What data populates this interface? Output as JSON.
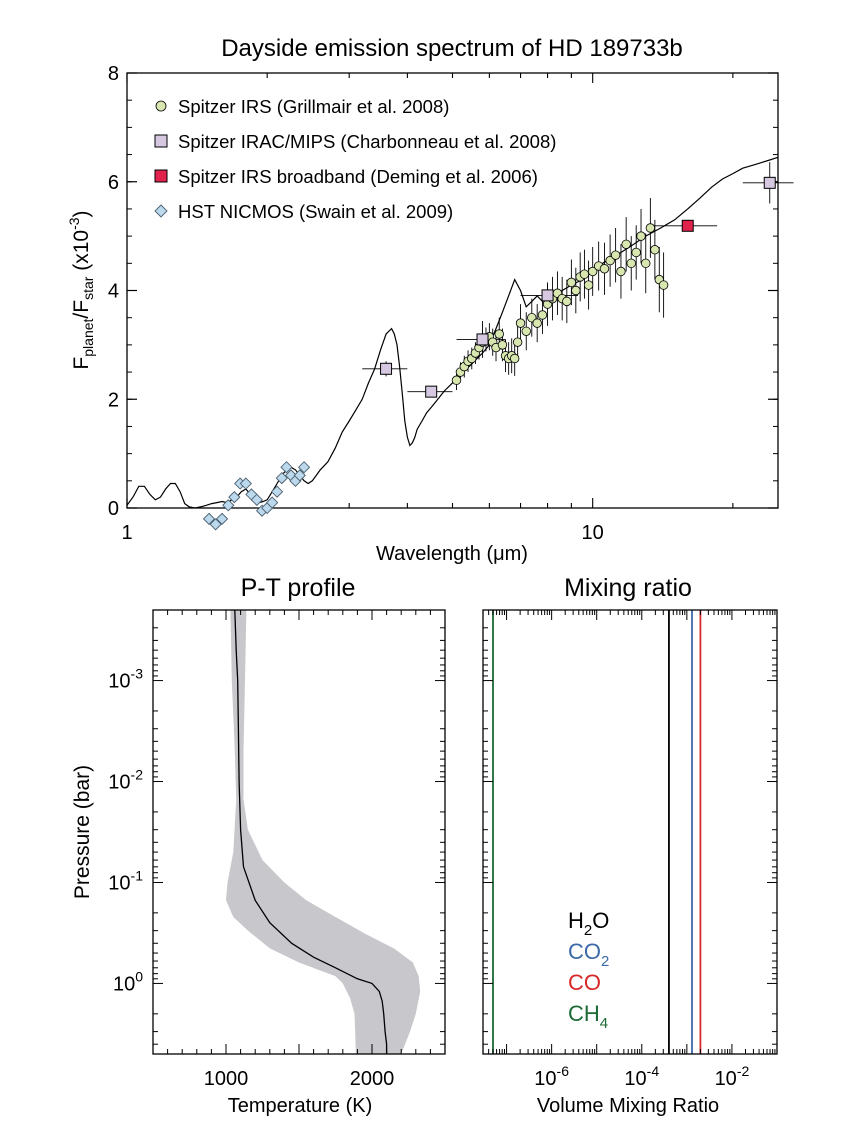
{
  "chart_data": [
    {
      "type": "scatter",
      "title": "Dayside emission spectrum of HD 189733b",
      "xlabel": "Wavelength (μm)",
      "ylabel_parts": {
        "f1": "F",
        "s1": "planet",
        "slash": "/F",
        "s2": "star",
        "unit_pre": " (x10",
        "unit_sup": "-3",
        "unit_post": ")"
      },
      "xscale": "log",
      "xlim": [
        1,
        25
      ],
      "ylim": [
        0,
        8
      ],
      "x_ticks": [
        {
          "value": 1,
          "label": "1"
        },
        {
          "value": 10,
          "label": "10"
        }
      ],
      "y_ticks": [
        {
          "value": 0,
          "label": "0"
        },
        {
          "value": 2,
          "label": "2"
        },
        {
          "value": 4,
          "label": "4"
        },
        {
          "value": 6,
          "label": "6"
        },
        {
          "value": 8,
          "label": "8"
        }
      ],
      "legend_position": "top-left",
      "legend": [
        {
          "name": "Spitzer IRS (Grillmair et al. 2008)",
          "marker": "circle",
          "color": "#d8e6b0"
        },
        {
          "name": "Spitzer IRAC/MIPS (Charbonneau et al. 2008)",
          "marker": "square",
          "color": "#d6c8e0"
        },
        {
          "name": "Spitzer IRS broadband (Deming et al. 2006)",
          "marker": "square",
          "color": "#e0224c"
        },
        {
          "name": "HST NICMOS (Swain et al. 2009)",
          "marker": "diamond",
          "color": "#bcd8ec"
        }
      ],
      "model_spectrum": {
        "x": [
          1.0,
          1.03,
          1.06,
          1.09,
          1.12,
          1.15,
          1.18,
          1.21,
          1.24,
          1.27,
          1.3,
          1.33,
          1.36,
          1.4,
          1.44,
          1.48,
          1.52,
          1.56,
          1.6,
          1.64,
          1.68,
          1.72,
          1.76,
          1.8,
          1.84,
          1.88,
          1.92,
          1.96,
          2.0,
          2.05,
          2.1,
          2.15,
          2.2,
          2.25,
          2.3,
          2.35,
          2.4,
          2.45,
          2.5,
          2.55,
          2.6,
          2.7,
          2.8,
          2.9,
          3.0,
          3.1,
          3.2,
          3.3,
          3.4,
          3.5,
          3.6,
          3.7,
          3.75,
          3.8,
          3.85,
          3.9,
          3.95,
          4.0,
          4.05,
          4.1,
          4.15,
          4.2,
          4.3,
          4.4,
          4.5,
          4.6,
          4.8,
          5.0,
          5.2,
          5.5,
          5.8,
          6.0,
          6.2,
          6.4,
          6.6,
          6.8,
          7.0,
          7.2,
          7.4,
          7.6,
          7.8,
          8.0,
          8.3,
          8.6,
          9.0,
          9.5,
          10.0,
          10.5,
          11.0,
          11.5,
          12.0,
          13.0,
          14.0,
          15.0,
          16.0,
          17.0,
          18.0,
          19.0,
          20.0,
          21.0,
          22.0,
          23.0,
          24.0,
          25.0
        ],
        "y": [
          0.05,
          0.2,
          0.4,
          0.4,
          0.25,
          0.15,
          0.2,
          0.35,
          0.45,
          0.45,
          0.3,
          0.08,
          0.02,
          0.0,
          0.02,
          0.05,
          0.08,
          0.1,
          0.12,
          0.1,
          0.15,
          0.2,
          0.3,
          0.35,
          0.25,
          0.15,
          0.1,
          0.12,
          0.15,
          0.3,
          0.45,
          0.6,
          0.7,
          0.75,
          0.7,
          0.6,
          0.5,
          0.45,
          0.5,
          0.6,
          0.7,
          0.85,
          1.1,
          1.4,
          1.6,
          1.8,
          2.0,
          2.3,
          2.55,
          2.9,
          3.2,
          3.3,
          3.2,
          3.0,
          2.6,
          2.1,
          1.6,
          1.3,
          1.15,
          1.2,
          1.3,
          1.45,
          1.6,
          1.75,
          1.85,
          1.95,
          2.15,
          2.3,
          2.45,
          2.65,
          2.85,
          3.0,
          3.3,
          3.6,
          3.9,
          4.2,
          4.0,
          3.7,
          3.8,
          3.9,
          3.8,
          3.85,
          3.9,
          4.0,
          4.1,
          4.2,
          4.35,
          4.5,
          4.6,
          4.7,
          4.8,
          5.0,
          5.15,
          5.3,
          5.5,
          5.7,
          5.9,
          6.05,
          6.15,
          6.25,
          6.3,
          6.35,
          6.4,
          6.45
        ]
      },
      "series": [
        {
          "name": "Spitzer IRS (Grillmair et al. 2008)",
          "marker": "circle",
          "color": "#d8e6b0",
          "x": [
            5.1,
            5.2,
            5.3,
            5.4,
            5.5,
            5.6,
            5.7,
            5.8,
            5.9,
            6.0,
            6.1,
            6.2,
            6.3,
            6.4,
            6.5,
            6.6,
            6.7,
            6.8,
            6.9,
            7.0,
            7.2,
            7.4,
            7.6,
            7.8,
            8.0,
            8.2,
            8.4,
            8.6,
            8.8,
            9.0,
            9.2,
            9.4,
            9.6,
            9.8,
            10.0,
            10.3,
            10.6,
            10.9,
            11.2,
            11.5,
            11.8,
            12.1,
            12.4,
            12.7,
            13.0,
            13.3,
            13.6,
            13.9,
            14.2
          ],
          "y": [
            2.35,
            2.5,
            2.6,
            2.7,
            2.75,
            2.85,
            2.95,
            3.05,
            3.1,
            3.15,
            3.05,
            2.95,
            3.2,
            3.0,
            2.8,
            2.75,
            2.8,
            2.75,
            3.05,
            3.4,
            3.25,
            3.5,
            3.4,
            3.55,
            3.75,
            3.85,
            3.95,
            3.85,
            3.8,
            4.15,
            4.0,
            4.25,
            4.3,
            4.1,
            4.35,
            4.45,
            4.4,
            4.55,
            4.65,
            4.35,
            4.85,
            4.5,
            4.7,
            5.0,
            4.5,
            5.15,
            4.75,
            4.2,
            4.1
          ],
          "yerr": [
            0.18,
            0.18,
            0.2,
            0.2,
            0.2,
            0.2,
            0.22,
            0.22,
            0.22,
            0.25,
            0.25,
            0.25,
            0.3,
            0.3,
            0.3,
            0.3,
            0.32,
            0.32,
            0.35,
            0.35,
            0.35,
            0.35,
            0.35,
            0.35,
            0.4,
            0.4,
            0.4,
            0.4,
            0.4,
            0.42,
            0.42,
            0.45,
            0.45,
            0.45,
            0.45,
            0.45,
            0.48,
            0.48,
            0.5,
            0.5,
            0.5,
            0.5,
            0.5,
            0.5,
            0.55,
            0.55,
            0.55,
            0.6,
            0.6
          ]
        },
        {
          "name": "Spitzer IRAC/MIPS (Charbonneau et al. 2008)",
          "marker": "square",
          "color": "#d6c8e0",
          "x": [
            3.6,
            4.5,
            5.8,
            8.0,
            24.0
          ],
          "y": [
            2.56,
            2.14,
            3.1,
            3.91,
            5.98
          ],
          "xerr_lo": [
            3.2,
            4.0,
            5.1,
            7.0,
            21.0
          ],
          "xerr_hi": [
            4.0,
            5.0,
            6.5,
            9.3,
            27.0
          ],
          "yerr": [
            0.14,
            0.08,
            0.34,
            0.2,
            0.38
          ]
        },
        {
          "name": "Spitzer IRS broadband (Deming et al. 2006)",
          "marker": "square",
          "color": "#e0224c",
          "x": [
            16.0
          ],
          "y": [
            5.19
          ],
          "xerr_lo": [
            13.5
          ],
          "xerr_hi": [
            18.5
          ],
          "yerr": [
            0.1
          ]
        },
        {
          "name": "HST NICMOS (Swain et al. 2009)",
          "marker": "diamond",
          "color": "#bcd8ec",
          "x": [
            1.5,
            1.55,
            1.6,
            1.65,
            1.7,
            1.75,
            1.8,
            1.85,
            1.9,
            1.95,
            2.0,
            2.05,
            2.1,
            2.15,
            2.2,
            2.25,
            2.3,
            2.35,
            2.4
          ],
          "y": [
            -0.2,
            -0.3,
            -0.2,
            0.05,
            0.2,
            0.45,
            0.45,
            0.25,
            0.15,
            -0.05,
            0.0,
            0.1,
            0.3,
            0.55,
            0.75,
            0.6,
            0.5,
            0.6,
            0.75
          ]
        }
      ]
    },
    {
      "type": "line",
      "title": "P-T profile",
      "xlabel": "Temperature (K)",
      "ylabel": "Pressure (bar)",
      "yscale": "log",
      "yreversed": true,
      "xlim": [
        500,
        2500
      ],
      "ylim": [
        0.0002,
        5
      ],
      "x_ticks": [
        {
          "value": 1000,
          "label": "1000"
        },
        {
          "value": 2000,
          "label": "2000"
        }
      ],
      "y_ticks": [
        {
          "value": 0.001,
          "base": "10",
          "exp": "-3"
        },
        {
          "value": 0.01,
          "base": "10",
          "exp": "-2"
        },
        {
          "value": 0.1,
          "base": "10",
          "exp": "-1"
        },
        {
          "value": 1,
          "base": "10",
          "exp": "0"
        }
      ],
      "median_profile": {
        "T": [
          1060,
          1070,
          1080,
          1085,
          1090,
          1100,
          1120,
          1200,
          1300,
          1450,
          1600,
          1750,
          1900,
          2000,
          2050,
          2070,
          2080,
          2090,
          2100,
          2100
        ],
        "P": [
          0.0002,
          0.0005,
          0.001,
          0.003,
          0.01,
          0.03,
          0.07,
          0.15,
          0.25,
          0.4,
          0.55,
          0.7,
          0.9,
          1.0,
          1.2,
          1.5,
          2.0,
          3.0,
          4.0,
          5.0
        ]
      },
      "uncertainty_band": {
        "left_T": [
          1030,
          1040,
          1060,
          1070,
          1050,
          1010,
          1000,
          1050,
          1150,
          1300,
          1500,
          1750,
          1800,
          1850,
          1880,
          1890
        ],
        "left_P": [
          0.0002,
          0.001,
          0.005,
          0.015,
          0.05,
          0.1,
          0.15,
          0.22,
          0.3,
          0.45,
          0.62,
          0.85,
          1.0,
          1.4,
          2.0,
          5.0
        ],
        "right_T": [
          1140,
          1130,
          1120,
          1120,
          1150,
          1250,
          1400,
          1550,
          1750,
          1950,
          2150,
          2280,
          2320,
          2330,
          2300,
          2260,
          2200
        ],
        "right_P": [
          0.0002,
          0.001,
          0.005,
          0.015,
          0.03,
          0.06,
          0.1,
          0.15,
          0.22,
          0.32,
          0.45,
          0.62,
          0.85,
          1.2,
          2.0,
          3.0,
          5.0
        ]
      },
      "color": "#000000",
      "band_color": "#c8c8cc"
    },
    {
      "type": "line",
      "title": "Mixing ratio",
      "xlabel": "Volume Mixing Ratio",
      "xscale": "log",
      "xlim": [
        3e-08,
        0.1
      ],
      "ylim": [
        0.0002,
        5
      ],
      "x_ticks": [
        {
          "value": 1e-06,
          "base": "10",
          "exp": "-6"
        },
        {
          "value": 0.0001,
          "base": "10",
          "exp": "-4"
        },
        {
          "value": 0.01,
          "base": "10",
          "exp": "-2"
        }
      ],
      "species": [
        {
          "name": "H",
          "sub": "2",
          "post": "O",
          "vmr": 0.0004,
          "color": "#000000"
        },
        {
          "name": "CO",
          "sub": "2",
          "post": "",
          "vmr": 0.0013,
          "color": "#3c6aa8"
        },
        {
          "name": "CO",
          "sub": "",
          "post": "",
          "vmr": 0.002,
          "color": "#d82828"
        },
        {
          "name": "CH",
          "sub": "4",
          "post": "",
          "vmr": 5e-08,
          "color": "#1c6a34"
        }
      ]
    }
  ]
}
